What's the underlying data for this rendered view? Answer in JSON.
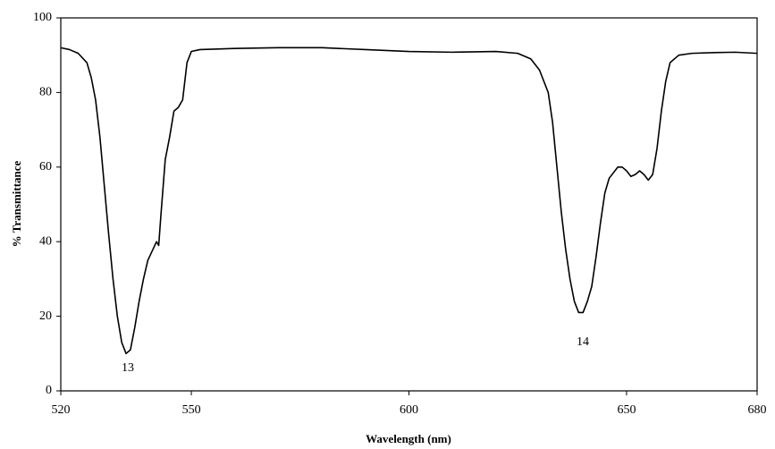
{
  "chart_data": {
    "type": "line",
    "xlabel": "Wavelength (nm)",
    "ylabel": "% Transmittance",
    "x": [
      520,
      522,
      524,
      526,
      527,
      528,
      529,
      530,
      531,
      532,
      533,
      534,
      535,
      536,
      537,
      538,
      539,
      540,
      542,
      542.5,
      543,
      544,
      545,
      546,
      547,
      548,
      549,
      550,
      552,
      560,
      570,
      580,
      590,
      600,
      610,
      620,
      625,
      628,
      630,
      632,
      633,
      634,
      635,
      636,
      637,
      638,
      639,
      640,
      641,
      642,
      643,
      644,
      645,
      646,
      648,
      649,
      650,
      651,
      652,
      653,
      654,
      655,
      656,
      657,
      658,
      659,
      660,
      662,
      665,
      670,
      675,
      680
    ],
    "series": [
      {
        "name": "Transmittance",
        "color": "#000000",
        "values": [
          92,
          91.5,
          90.5,
          88,
          84,
          78,
          68,
          55,
          42,
          30,
          20,
          13,
          10,
          11,
          17,
          24,
          30,
          35,
          40,
          39,
          47,
          62,
          68,
          75,
          76,
          78,
          88,
          91,
          91.5,
          91.8,
          92,
          92,
          91.5,
          91,
          90.8,
          91,
          90.5,
          89,
          86,
          80,
          72,
          60,
          48,
          38,
          30,
          24,
          21,
          21,
          24,
          28,
          36,
          45,
          53,
          57,
          60,
          60,
          59,
          57.5,
          58,
          59,
          58,
          56.5,
          58,
          65,
          75,
          83,
          88,
          90,
          90.5,
          90.7,
          90.8,
          90.5
        ]
      }
    ],
    "annotations": [
      "13",
      "14"
    ],
    "xlim": [
      520,
      680
    ],
    "xticks": [
      520,
      550,
      600,
      650,
      680
    ],
    "ylim": [
      0,
      100
    ],
    "yticks": [
      0,
      20,
      40,
      60,
      80,
      100
    ]
  }
}
